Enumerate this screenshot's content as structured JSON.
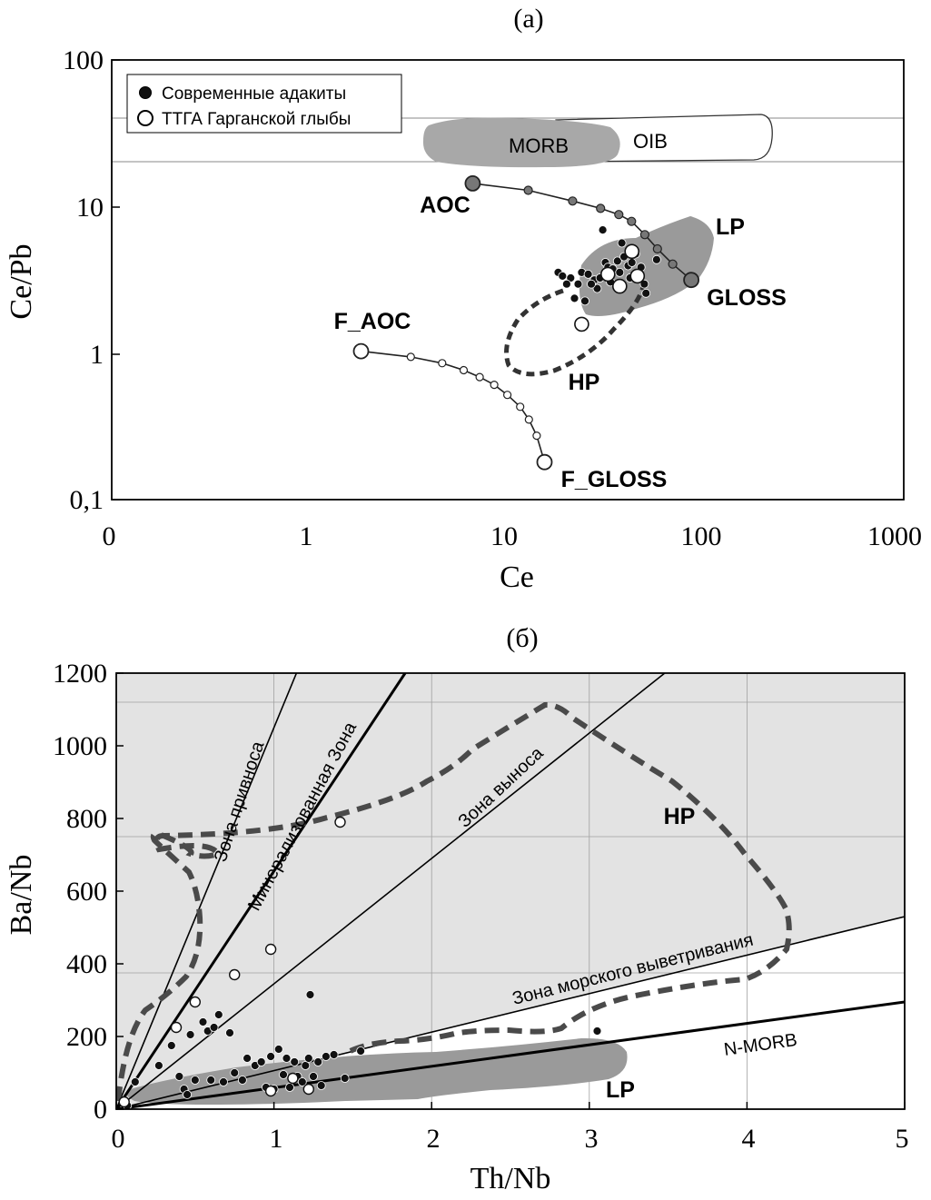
{
  "chart_data": [
    {
      "type": "scatter",
      "panel_label": "(а)",
      "xlabel": "Ce",
      "ylabel": "Ce/Pb",
      "xscale": "log",
      "yscale": "log",
      "xlim": [
        0.1,
        1000
      ],
      "ylim": [
        0.1,
        100
      ],
      "x_ticks": [
        "0",
        "1",
        "10",
        "100",
        "1000"
      ],
      "y_ticks": [
        "0,1",
        "1",
        "10",
        "100"
      ],
      "legend": {
        "position": "top-left",
        "entries": [
          {
            "marker": "filled-circle",
            "label": "Современные адакиты"
          },
          {
            "marker": "open-circle",
            "label": "ТТГА Гарганской глыбы"
          }
        ]
      },
      "reference_band": {
        "y_from": 20,
        "y_to": 38
      },
      "regions": [
        {
          "name": "MORB",
          "label": "MORB",
          "fill": "#a8a8a8"
        },
        {
          "name": "OIB",
          "label": "OIB",
          "fill": "#ffffff"
        },
        {
          "name": "LP",
          "label": "LP",
          "fill": "#9a9a9a"
        },
        {
          "name": "HP",
          "label": "HP",
          "style": "dashed"
        }
      ],
      "mixing_curves": [
        {
          "from": "AOC",
          "to": "GLOSS",
          "points": [
            [
              7,
              14.5
            ],
            [
              13.4,
              13.0
            ],
            [
              22.5,
              11.0
            ],
            [
              31.2,
              9.8
            ],
            [
              38.6,
              8.9
            ],
            [
              44.8,
              8.0
            ],
            [
              52.3,
              6.5
            ],
            [
              60.6,
              5.2
            ],
            [
              72.4,
              4.1
            ],
            [
              90,
              3.2
            ]
          ]
        },
        {
          "from": "F_AOC",
          "to": "F_GLOSS",
          "points": [
            [
              1.9,
              1.05
            ],
            [
              3.4,
              0.96
            ],
            [
              4.9,
              0.87
            ],
            [
              6.3,
              0.78
            ],
            [
              7.6,
              0.7
            ],
            [
              9.0,
              0.62
            ],
            [
              10.5,
              0.53
            ],
            [
              12.2,
              0.44
            ],
            [
              13.5,
              0.36
            ],
            [
              14.8,
              0.28
            ],
            [
              16.2,
              0.185
            ]
          ]
        }
      ],
      "labels": [
        "AOC",
        "GLOSS",
        "F_AOC",
        "F_GLOSS",
        "LP",
        "HP"
      ],
      "series": [
        {
          "name": "Современные адакиты",
          "marker": "filled",
          "points": [
            [
              19,
              3.6
            ],
            [
              20,
              3.4
            ],
            [
              22,
              3.3
            ],
            [
              24,
              3.0
            ],
            [
              23,
              2.4
            ],
            [
              25,
              3.6
            ],
            [
              27,
              3.5
            ],
            [
              29,
              3.2
            ],
            [
              30,
              2.8
            ],
            [
              31,
              3.3
            ],
            [
              32,
              7.0
            ],
            [
              33,
              4.2
            ],
            [
              34,
              3.9
            ],
            [
              36,
              3.8
            ],
            [
              38,
              4.3
            ],
            [
              39,
              3.6
            ],
            [
              40,
              5.7
            ],
            [
              41,
              4.6
            ],
            [
              43,
              4.0
            ],
            [
              45,
              4.2
            ],
            [
              47,
              4.8
            ],
            [
              50,
              3.9
            ],
            [
              52,
              3.0
            ],
            [
              53,
              2.6
            ],
            [
              60,
              4.4
            ],
            [
              26,
              2.3
            ],
            [
              21,
              3.0
            ],
            [
              35,
              3.1
            ],
            [
              28,
              3.0
            ],
            [
              44,
              3.3
            ]
          ]
        },
        {
          "name": "ТТГА Гарганской глыбы",
          "marker": "open",
          "points": [
            [
              25,
              1.6
            ],
            [
              34,
              3.5
            ],
            [
              39,
              2.9
            ],
            [
              45,
              5.0
            ],
            [
              48,
              3.4
            ]
          ]
        }
      ]
    },
    {
      "type": "scatter",
      "panel_label": "(б)",
      "xlabel": "Th/Nb",
      "ylabel": "Ba/Nb",
      "xlim": [
        0,
        5
      ],
      "ylim": [
        0,
        1200
      ],
      "x_ticks": [
        "0",
        "1",
        "2",
        "3",
        "4",
        "5"
      ],
      "y_ticks": [
        "0",
        "200",
        "400",
        "600",
        "800",
        "1000",
        "1200"
      ],
      "lines": [
        {
          "label": "Зона привноса",
          "slope": 1050
        },
        {
          "label": "Минерализованная Зона",
          "slope": 655
        },
        {
          "label": "Зона выноса",
          "slope": 345
        },
        {
          "label": "Зона морского выветривания",
          "slope": 106
        },
        {
          "label": "N-MORB",
          "slope": 59
        }
      ],
      "regions": [
        {
          "name": "LP",
          "label": "LP",
          "fill": "#9a9a9a"
        },
        {
          "name": "HP",
          "label": "HP",
          "style": "dashed"
        }
      ],
      "series": [
        {
          "name": "Современные адакиты",
          "marker": "filled",
          "points": [
            [
              0.12,
              75
            ],
            [
              0.27,
              120
            ],
            [
              0.35,
              175
            ],
            [
              0.4,
              90
            ],
            [
              0.43,
              55
            ],
            [
              0.45,
              40
            ],
            [
              0.47,
              205
            ],
            [
              0.5,
              80
            ],
            [
              0.55,
              240
            ],
            [
              0.58,
              215
            ],
            [
              0.6,
              80
            ],
            [
              0.62,
              225
            ],
            [
              0.65,
              260
            ],
            [
              0.68,
              75
            ],
            [
              0.72,
              210
            ],
            [
              0.75,
              100
            ],
            [
              0.8,
              80
            ],
            [
              0.83,
              140
            ],
            [
              0.88,
              120
            ],
            [
              0.92,
              130
            ],
            [
              0.95,
              60
            ],
            [
              0.98,
              145
            ],
            [
              1.0,
              55
            ],
            [
              1.03,
              165
            ],
            [
              1.06,
              95
            ],
            [
              1.08,
              140
            ],
            [
              1.1,
              60
            ],
            [
              1.13,
              130
            ],
            [
              1.15,
              90
            ],
            [
              1.18,
              75
            ],
            [
              1.2,
              120
            ],
            [
              1.22,
              140
            ],
            [
              1.23,
              315
            ],
            [
              1.25,
              90
            ],
            [
              1.28,
              130
            ],
            [
              1.3,
              65
            ],
            [
              1.33,
              145
            ],
            [
              1.38,
              150
            ],
            [
              1.45,
              85
            ],
            [
              1.55,
              160
            ],
            [
              3.05,
              215
            ],
            [
              0.07,
              10
            ]
          ]
        },
        {
          "name": "ТТГА Гарганской глыбы",
          "marker": "open",
          "points": [
            [
              0.05,
              20
            ],
            [
              0.38,
              225
            ],
            [
              0.5,
              295
            ],
            [
              0.75,
              370
            ],
            [
              0.98,
              440
            ],
            [
              1.42,
              790
            ],
            [
              0.98,
              50
            ],
            [
              1.12,
              85
            ],
            [
              1.22,
              55
            ]
          ]
        }
      ]
    }
  ]
}
